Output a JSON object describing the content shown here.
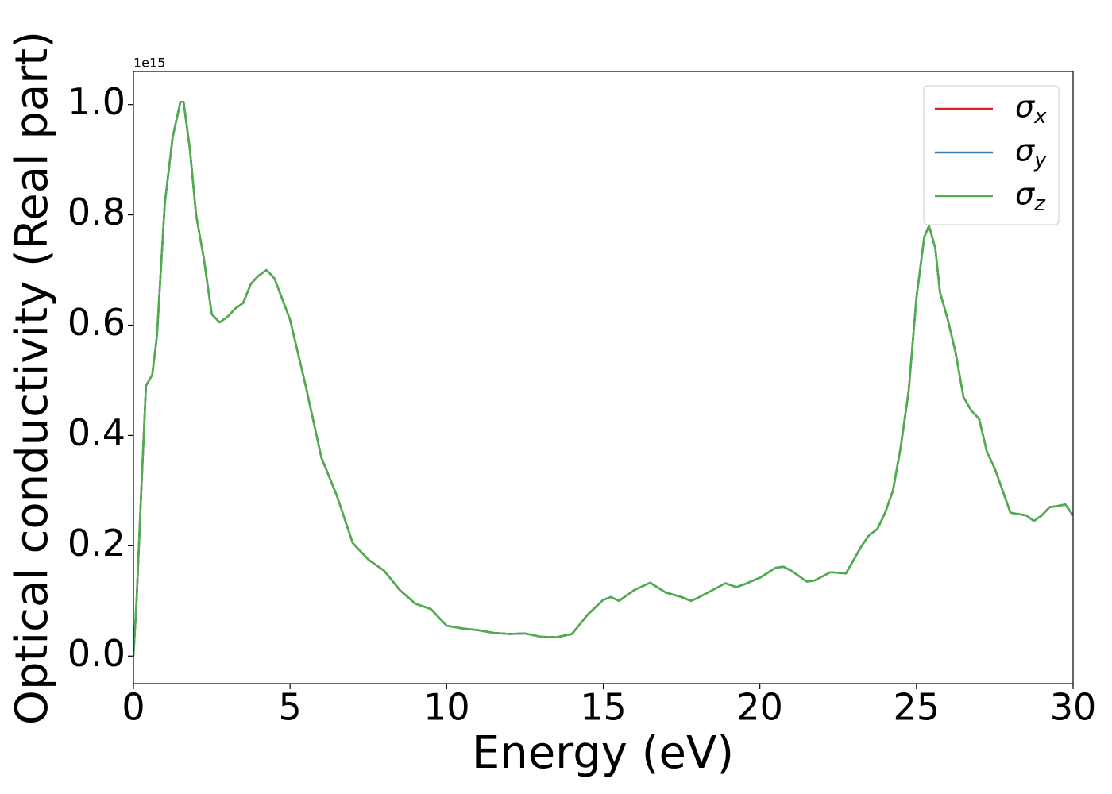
{
  "chart_data": {
    "type": "line",
    "xlabel": "Energy (eV)",
    "ylabel": "Optical conductivity (Real part)",
    "offset_text": "1e15",
    "x": [
      0,
      0.1,
      0.25,
      0.4,
      0.6,
      0.75,
      1.0,
      1.25,
      1.5,
      1.6,
      1.8,
      2.0,
      2.25,
      2.5,
      2.75,
      3.0,
      3.25,
      3.5,
      3.75,
      4.0,
      4.25,
      4.5,
      5.0,
      5.5,
      6.0,
      6.5,
      7.0,
      7.5,
      8.0,
      8.5,
      9.0,
      9.5,
      10.0,
      10.5,
      11.0,
      11.5,
      12.0,
      12.5,
      13.0,
      13.5,
      14.0,
      14.5,
      15.0,
      15.25,
      15.5,
      15.75,
      16.0,
      16.5,
      17.0,
      17.5,
      17.8,
      18.0,
      18.5,
      18.9,
      19.25,
      19.5,
      20.0,
      20.5,
      20.75,
      21.0,
      21.5,
      21.75,
      22.25,
      22.75,
      23.0,
      23.25,
      23.5,
      23.75,
      24.0,
      24.25,
      24.5,
      24.75,
      25.0,
      25.25,
      25.4,
      25.6,
      25.75,
      26.0,
      26.25,
      26.5,
      26.75,
      27.0,
      27.25,
      27.5,
      27.75,
      28.0,
      28.5,
      28.75,
      29.0,
      29.25,
      29.5,
      29.75,
      30.0
    ],
    "series": [
      {
        "name": "σx",
        "color": "#e41a1c",
        "values": [
          0.0,
          0.1,
          0.3,
          0.49,
          0.51,
          0.58,
          0.82,
          0.94,
          1.005,
          1.005,
          0.92,
          0.8,
          0.72,
          0.62,
          0.605,
          0.615,
          0.63,
          0.64,
          0.675,
          0.69,
          0.7,
          0.685,
          0.61,
          0.49,
          0.36,
          0.29,
          0.205,
          0.175,
          0.155,
          0.12,
          0.095,
          0.085,
          0.055,
          0.05,
          0.047,
          0.042,
          0.04,
          0.041,
          0.035,
          0.034,
          0.04,
          0.075,
          0.102,
          0.107,
          0.1,
          0.11,
          0.12,
          0.133,
          0.115,
          0.107,
          0.1,
          0.105,
          0.12,
          0.132,
          0.125,
          0.13,
          0.142,
          0.16,
          0.162,
          0.155,
          0.135,
          0.137,
          0.152,
          0.15,
          0.175,
          0.2,
          0.22,
          0.23,
          0.26,
          0.3,
          0.38,
          0.48,
          0.65,
          0.76,
          0.78,
          0.74,
          0.66,
          0.61,
          0.55,
          0.47,
          0.445,
          0.43,
          0.37,
          0.34,
          0.3,
          0.26,
          0.255,
          0.245,
          0.255,
          0.27,
          0.272,
          0.275,
          0.255
        ]
      },
      {
        "name": "σy",
        "color": "#377eb8",
        "values": [
          0.0,
          0.1,
          0.3,
          0.49,
          0.51,
          0.58,
          0.82,
          0.94,
          1.005,
          1.005,
          0.92,
          0.8,
          0.72,
          0.62,
          0.605,
          0.615,
          0.63,
          0.64,
          0.675,
          0.69,
          0.7,
          0.685,
          0.61,
          0.49,
          0.36,
          0.29,
          0.205,
          0.175,
          0.155,
          0.12,
          0.095,
          0.085,
          0.055,
          0.05,
          0.047,
          0.042,
          0.04,
          0.041,
          0.035,
          0.034,
          0.04,
          0.075,
          0.102,
          0.107,
          0.1,
          0.11,
          0.12,
          0.133,
          0.115,
          0.107,
          0.1,
          0.105,
          0.12,
          0.132,
          0.125,
          0.13,
          0.142,
          0.16,
          0.162,
          0.155,
          0.135,
          0.137,
          0.152,
          0.15,
          0.175,
          0.2,
          0.22,
          0.23,
          0.26,
          0.3,
          0.38,
          0.48,
          0.65,
          0.76,
          0.78,
          0.74,
          0.66,
          0.61,
          0.55,
          0.47,
          0.445,
          0.43,
          0.37,
          0.34,
          0.3,
          0.26,
          0.255,
          0.245,
          0.255,
          0.27,
          0.272,
          0.275,
          0.255
        ]
      },
      {
        "name": "σz",
        "color": "#4daf4a",
        "values": [
          0.0,
          0.1,
          0.3,
          0.49,
          0.51,
          0.58,
          0.82,
          0.94,
          1.005,
          1.005,
          0.92,
          0.8,
          0.72,
          0.62,
          0.605,
          0.615,
          0.63,
          0.64,
          0.675,
          0.69,
          0.7,
          0.685,
          0.61,
          0.49,
          0.36,
          0.29,
          0.205,
          0.175,
          0.155,
          0.12,
          0.095,
          0.085,
          0.055,
          0.05,
          0.047,
          0.042,
          0.04,
          0.041,
          0.035,
          0.034,
          0.04,
          0.075,
          0.102,
          0.107,
          0.1,
          0.11,
          0.12,
          0.133,
          0.115,
          0.107,
          0.1,
          0.105,
          0.12,
          0.132,
          0.125,
          0.13,
          0.142,
          0.16,
          0.162,
          0.155,
          0.135,
          0.137,
          0.152,
          0.15,
          0.175,
          0.2,
          0.22,
          0.23,
          0.26,
          0.3,
          0.38,
          0.48,
          0.65,
          0.76,
          0.78,
          0.74,
          0.66,
          0.61,
          0.55,
          0.47,
          0.445,
          0.43,
          0.37,
          0.34,
          0.3,
          0.26,
          0.255,
          0.245,
          0.255,
          0.27,
          0.272,
          0.275,
          0.255
        ]
      }
    ],
    "xlim": [
      0,
      30
    ],
    "xticks": [
      0,
      5,
      10,
      15,
      20,
      25,
      30
    ],
    "ylim": [
      -0.05,
      1.06
    ],
    "yticks": [
      {
        "value": 0,
        "label": "0.0"
      },
      0.2,
      0.4,
      0.6,
      0.8,
      {
        "value": 1,
        "label": "1.0"
      }
    ],
    "legend": "upper right",
    "grid": false
  }
}
